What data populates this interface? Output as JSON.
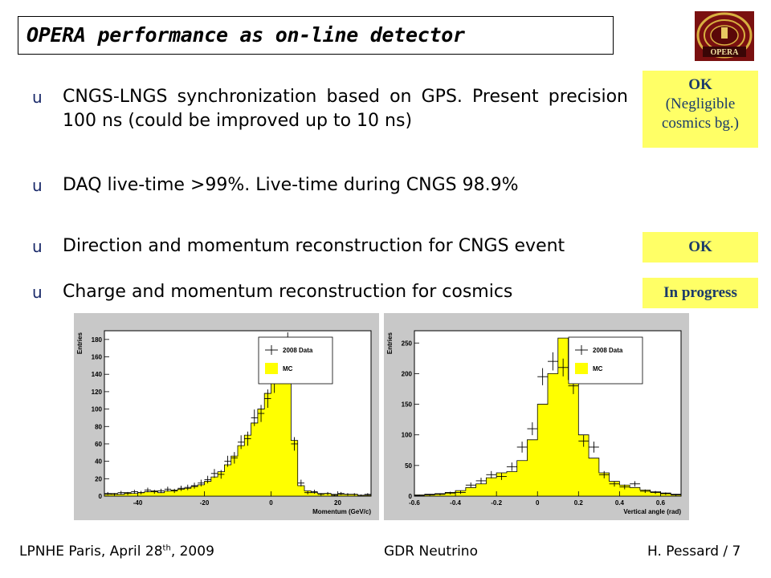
{
  "title": "OPERA performance as on-line detector",
  "logo_text": "OPERA",
  "bullet_mark": "u",
  "bullets": [
    {
      "text": "CNGS-LNGS synchronization based on GPS. Present precision 100 ns (could be improved up to 10 ns)"
    },
    {
      "text": "DAQ live-time >99%. Live-time during CNGS 98.9%"
    },
    {
      "text": "Direction and momentum reconstruction for CNGS event"
    },
    {
      "text": "Charge and momentum reconstruction for cosmics"
    }
  ],
  "status": {
    "s1_line1": "OK",
    "s1_line2": "(Negligible",
    "s1_line3": "cosmics bg.)",
    "s2": "OK",
    "s3": "In progress"
  },
  "footer": {
    "left_prefix": "LPNHE Paris, April 28",
    "left_sup": "th",
    "left_suffix": ", 2009",
    "center": "GDR Neutrino",
    "right": "H. Pessard  /  7"
  },
  "chart_data": [
    {
      "type": "bar",
      "xlabel": "Momentum (GeV/c)",
      "ylabel": "Entries",
      "xlim": [
        -50,
        30
      ],
      "ylim": [
        0,
        190
      ],
      "xticks": [
        -40,
        -20,
        0,
        20
      ],
      "yticks": [
        0,
        20,
        40,
        60,
        80,
        100,
        120,
        140,
        160,
        180
      ],
      "legend": [
        "2008 Data",
        "MC"
      ],
      "legend_position": "top-right",
      "bin_width": 2,
      "bins_start": -50,
      "mc": [
        2,
        3,
        2,
        4,
        3,
        4,
        5,
        6,
        4,
        6,
        7,
        8,
        9,
        11,
        13,
        17,
        22,
        28,
        36,
        46,
        58,
        70,
        84,
        100,
        118,
        138,
        158,
        162,
        64,
        12,
        6,
        4,
        3,
        3,
        2,
        2,
        2,
        2,
        1,
        1
      ],
      "data": [
        3,
        2,
        4,
        3,
        5,
        4,
        7,
        5,
        6,
        8,
        6,
        9,
        10,
        12,
        15,
        19,
        26,
        25,
        40,
        44,
        62,
        66,
        90,
        95,
        112,
        130,
        166,
        175,
        60,
        15,
        4,
        5,
        2,
        3,
        1,
        3,
        2,
        2,
        1,
        2
      ]
    },
    {
      "type": "bar",
      "xlabel": "Vertical angle (rad)",
      "ylabel": "Entries",
      "xlim": [
        -0.6,
        0.7
      ],
      "ylim": [
        0,
        270
      ],
      "xticks": [
        -0.6,
        -0.4,
        -0.2,
        0,
        0.2,
        0.4,
        0.6
      ],
      "yticks": [
        0,
        50,
        100,
        150,
        200,
        250
      ],
      "legend": [
        "2008 Data",
        "MC"
      ],
      "legend_position": "top-right",
      "bin_width": 0.05,
      "bins_start": -0.6,
      "mc": [
        2,
        3,
        4,
        6,
        9,
        14,
        20,
        30,
        38,
        40,
        58,
        92,
        150,
        200,
        258,
        190,
        100,
        62,
        38,
        24,
        18,
        14,
        10,
        7,
        5,
        3
      ],
      "data": [
        1,
        2,
        3,
        5,
        6,
        18,
        25,
        35,
        32,
        48,
        80,
        110,
        195,
        220,
        210,
        180,
        90,
        80,
        35,
        20,
        15,
        20,
        8,
        6,
        4,
        2
      ]
    }
  ]
}
